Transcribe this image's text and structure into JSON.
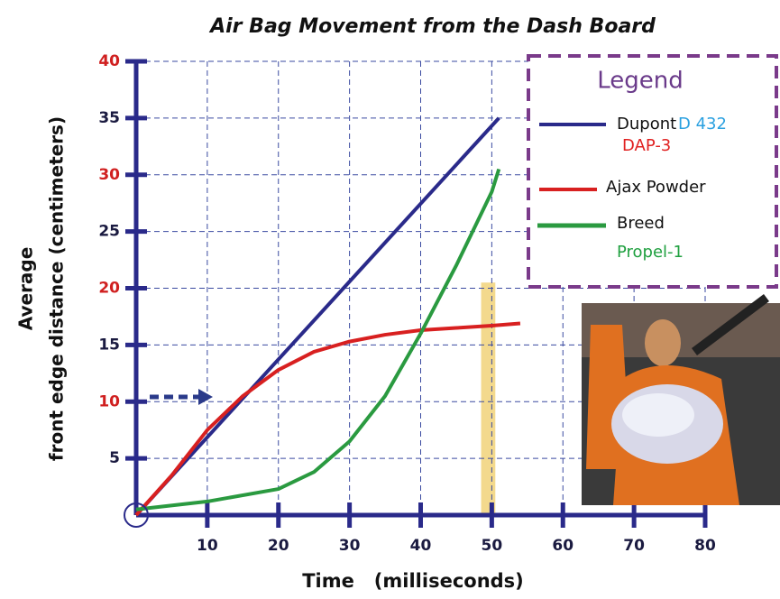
{
  "chart_data": {
    "type": "line",
    "title": "Air Bag Movement from the Dash Board",
    "x_label": "Time   (milliseconds)",
    "y_label": [
      "Average",
      "front edge distance (centimeters)"
    ],
    "xlim": [
      0,
      80
    ],
    "xticks": [
      10,
      20,
      30,
      40,
      50,
      60,
      70,
      80
    ],
    "ylim": [
      0,
      40
    ],
    "yticks": [
      5,
      10,
      15,
      20,
      25,
      30,
      35,
      40
    ],
    "ytick_label_colors": [
      "#1a1a40",
      "#d02020",
      "#1a1a40",
      "#d02020",
      "#1a1a40",
      "#d02020",
      "#1a1a40",
      "#d02020"
    ],
    "grid": true,
    "series": [
      {
        "name": "Dupont",
        "color": "#2a2a8a",
        "x": [
          0,
          51
        ],
        "values": [
          0,
          35
        ]
      },
      {
        "name": "Ajax Powder",
        "color": "#d82020",
        "x": [
          0,
          5,
          10,
          15,
          20,
          25,
          30,
          35,
          40,
          45,
          50,
          54
        ],
        "values": [
          0,
          3.5,
          7.5,
          10.5,
          12.8,
          14.4,
          15.3,
          15.9,
          16.3,
          16.5,
          16.7,
          16.9
        ]
      },
      {
        "name": "Breed",
        "color": "#2a9a40",
        "x": [
          0,
          10,
          20,
          25,
          30,
          35,
          40,
          45,
          50,
          51
        ],
        "values": [
          0.5,
          1.2,
          2.3,
          3.8,
          6.5,
          10.5,
          16,
          22,
          28.5,
          30.5
        ]
      }
    ],
    "legend": {
      "title": "Legend",
      "notes": [
        {
          "text": "D 432",
          "color": "#2aa0e0"
        },
        {
          "text": "DAP-3",
          "color": "#e02020"
        },
        {
          "text": "Propel-1",
          "color": "#20a040"
        }
      ]
    },
    "highlight": {
      "x": [
        48.5,
        50.5
      ],
      "y": [
        0,
        20.5
      ],
      "color": "#f0d070"
    }
  }
}
